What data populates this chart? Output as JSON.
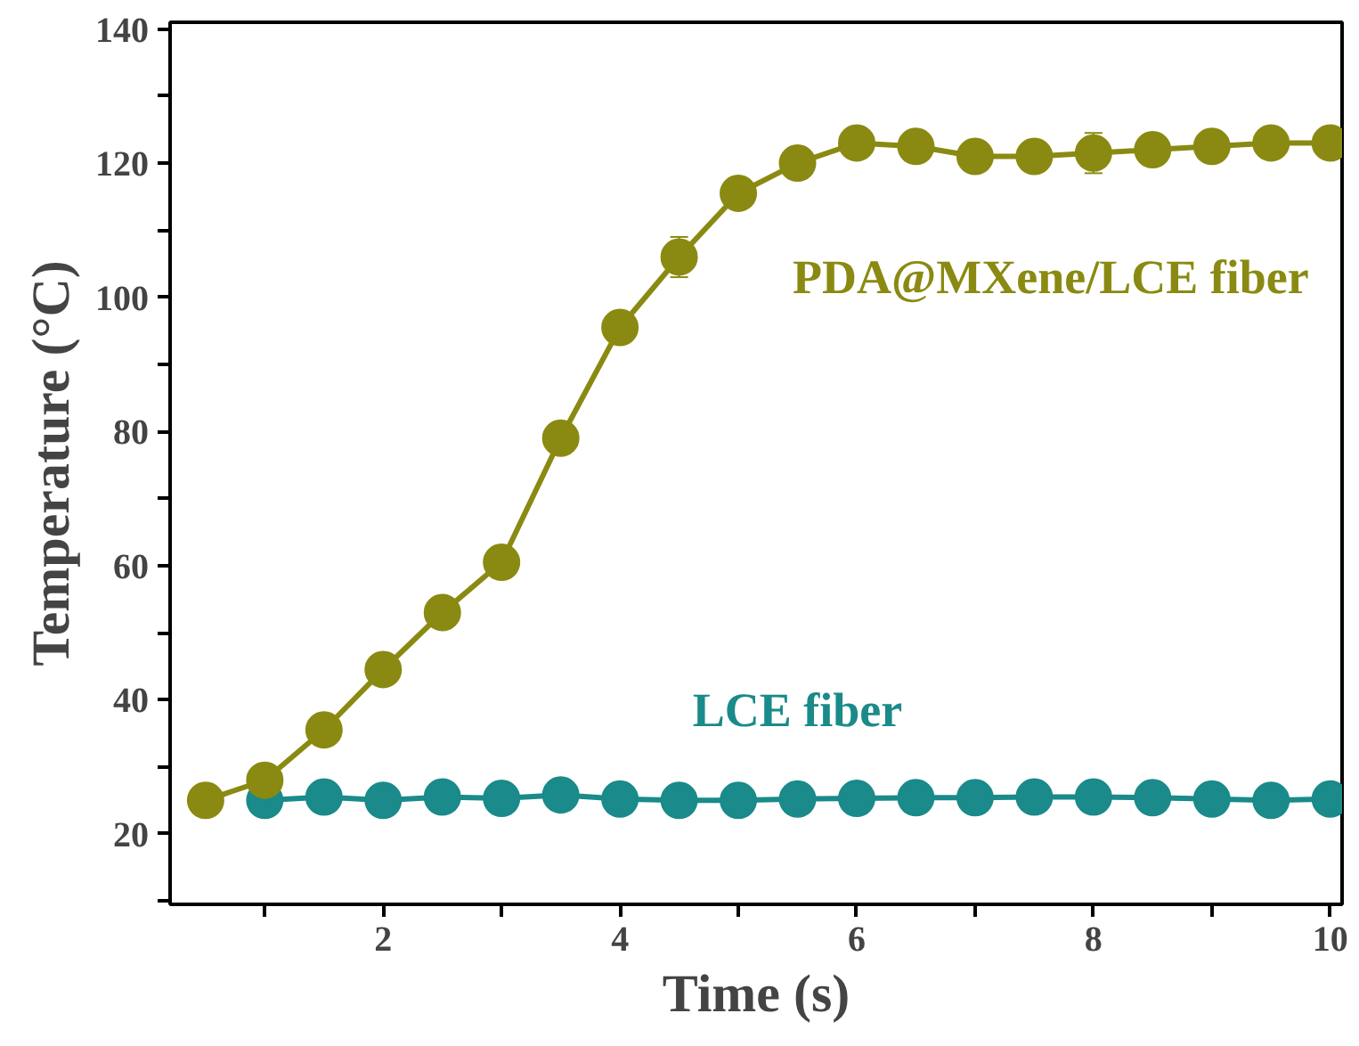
{
  "chart_data": {
    "type": "line",
    "xlabel": "Time (s)",
    "ylabel": "Temperature (°C)",
    "x": [
      0.5,
      1,
      1.5,
      2,
      2.5,
      3,
      3.5,
      4,
      4.5,
      5,
      5.5,
      6,
      6.5,
      7,
      7.5,
      8,
      8.5,
      9,
      9.5,
      10
    ],
    "series": [
      {
        "name": "PDA@MXene/LCE fiber",
        "color": "#8a8a12",
        "values": [
          25,
          28,
          35.5,
          44.5,
          53,
          60.5,
          79,
          95.5,
          106,
          115.5,
          120,
          123,
          122.5,
          121,
          121,
          121.5,
          122,
          122.5,
          123,
          123
        ],
        "errors": [
          null,
          null,
          null,
          null,
          null,
          null,
          null,
          null,
          3,
          null,
          2,
          null,
          null,
          null,
          null,
          3,
          null,
          null,
          null,
          null
        ]
      },
      {
        "name": "LCE fiber",
        "color": "#1a8a8a",
        "values": [
          null,
          25,
          25.5,
          25,
          25.5,
          25.3,
          25.8,
          25.2,
          25,
          25,
          25.2,
          25.3,
          25.4,
          25.4,
          25.5,
          25.5,
          25.4,
          25.2,
          25,
          25.2
        ]
      }
    ],
    "xlim": [
      0.2,
      10.1
    ],
    "ylim": [
      9.5,
      141
    ],
    "xticks": [
      {
        "value": 1,
        "label": null
      },
      2,
      {
        "value": 3,
        "label": null
      },
      4,
      {
        "value": 5,
        "label": null
      },
      6,
      {
        "value": 7,
        "label": null
      },
      8,
      {
        "value": 9,
        "label": null
      },
      10
    ],
    "yticks": [
      {
        "value": 10,
        "label": null
      },
      20,
      {
        "value": 30,
        "label": null
      },
      40,
      {
        "value": 50,
        "label": null
      },
      60,
      {
        "value": 70,
        "label": null
      },
      80,
      {
        "value": 90,
        "label": null
      },
      100,
      {
        "value": 110,
        "label": null
      },
      120,
      {
        "value": 130,
        "label": null
      },
      140
    ],
    "marker": "circle",
    "line_style": "solid",
    "grid": false
  }
}
